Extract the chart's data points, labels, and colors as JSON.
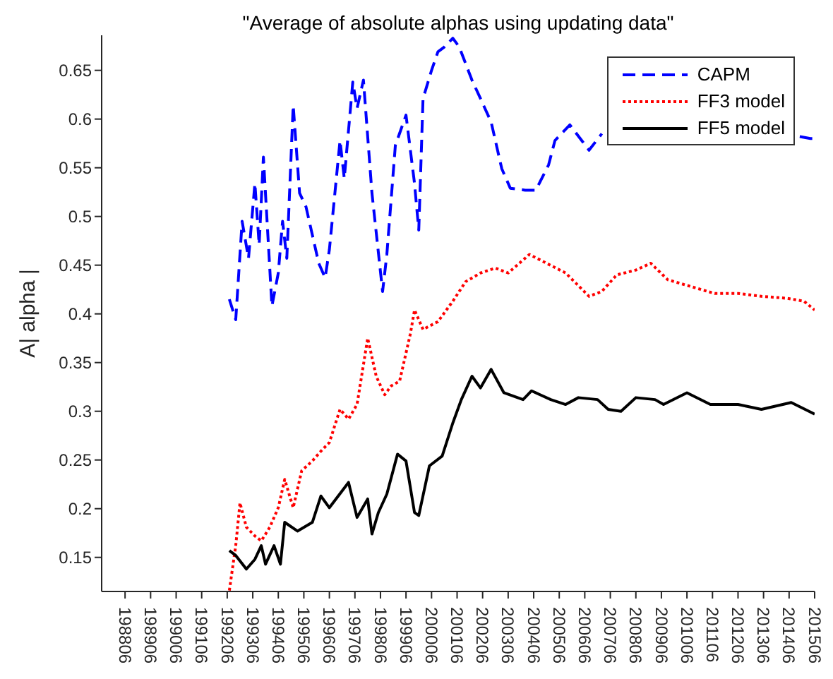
{
  "chart_data": {
    "type": "line",
    "title": "\"Average of absolute alphas using updating data\"",
    "ylabel": "A| alpha |",
    "xlim": [
      "1987-07",
      "2015-06"
    ],
    "xticks": [
      {
        "value": "1988-06",
        "label": "198806"
      },
      {
        "value": "1989-06",
        "label": "198906"
      },
      {
        "value": "1990-06",
        "label": "199006"
      },
      {
        "value": "1991-06",
        "label": "199106"
      },
      {
        "value": "1992-06",
        "label": "199206"
      },
      {
        "value": "1993-06",
        "label": "199306"
      },
      {
        "value": "1994-06",
        "label": "199406"
      },
      {
        "value": "1995-06",
        "label": "199506"
      },
      {
        "value": "1996-06",
        "label": "199606"
      },
      {
        "value": "1997-06",
        "label": "199706"
      },
      {
        "value": "1998-06",
        "label": "199806"
      },
      {
        "value": "1999-06",
        "label": "199906"
      },
      {
        "value": "2000-06",
        "label": "200006"
      },
      {
        "value": "2001-06",
        "label": "200106"
      },
      {
        "value": "2002-06",
        "label": "200206"
      },
      {
        "value": "2003-06",
        "label": "200306"
      },
      {
        "value": "2004-06",
        "label": "200406"
      },
      {
        "value": "2005-06",
        "label": "200506"
      },
      {
        "value": "2006-06",
        "label": "200606"
      },
      {
        "value": "2007-06",
        "label": "200706"
      },
      {
        "value": "2008-06",
        "label": "200806"
      },
      {
        "value": "2009-06",
        "label": "200906"
      },
      {
        "value": "2010-06",
        "label": "201006"
      },
      {
        "value": "2011-06",
        "label": "201106"
      },
      {
        "value": "2012-06",
        "label": "201206"
      },
      {
        "value": "2013-06",
        "label": "201306"
      },
      {
        "value": "2014-06",
        "label": "201406"
      },
      {
        "value": "2015-06",
        "label": "201506"
      }
    ],
    "ylim": [
      0.115,
      0.686
    ],
    "yticks": [
      0.15,
      0.2,
      0.25,
      0.3,
      0.35,
      0.4,
      0.45,
      0.5,
      0.55,
      0.6,
      0.65
    ],
    "grid": false,
    "legend": "top right",
    "marker": "none",
    "series": [
      {
        "name": "CAPM",
        "color": "#0000ff",
        "line_style": "dashed",
        "x": [
          "1992-07",
          "1992-10",
          "1993-01",
          "1993-04",
          "1993-07",
          "1993-09",
          "1993-11",
          "1994-03",
          "1994-06",
          "1994-08",
          "1994-10",
          "1995-01",
          "1995-04",
          "1995-07",
          "1996-01",
          "1996-04",
          "1996-06",
          "1996-11",
          "1997-01",
          "1997-05",
          "1997-07",
          "1997-10",
          "1998-02",
          "1998-07",
          "1998-09",
          "1999-01",
          "1999-06",
          "1999-10",
          "1999-12",
          "2000-02",
          "2000-06",
          "2000-09",
          "2000-12",
          "2001-04",
          "2001-07",
          "2002-01",
          "2002-05",
          "2002-10",
          "2003-03",
          "2003-07",
          "2004-02",
          "2004-07",
          "2005-01",
          "2005-04",
          "2005-11",
          "2006-08",
          "2007-02",
          "2010-01",
          "2014-11",
          "2015-04",
          "2015-06"
        ],
        "values": [
          0.415,
          0.394,
          0.495,
          0.457,
          0.534,
          0.471,
          0.561,
          0.408,
          0.442,
          0.495,
          0.457,
          0.614,
          0.524,
          0.51,
          0.452,
          0.437,
          0.466,
          0.578,
          0.539,
          0.638,
          0.611,
          0.64,
          0.524,
          0.423,
          0.461,
          0.573,
          0.604,
          0.534,
          0.486,
          0.621,
          0.65,
          0.669,
          0.674,
          0.683,
          0.674,
          0.64,
          0.621,
          0.597,
          0.549,
          0.529,
          0.527,
          0.527,
          0.553,
          0.578,
          0.594,
          0.568,
          0.585,
          null,
          0.582,
          0.58,
          0.58
        ]
      },
      {
        "name": "FF3 model",
        "color": "#ff0000",
        "line_style": "dotted",
        "x": [
          "1992-07",
          "1992-10",
          "1992-12",
          "1993-03",
          "1993-07",
          "1993-10",
          "1994-02",
          "1994-06",
          "1994-09",
          "1995-01",
          "1995-05",
          "1995-10",
          "1996-02",
          "1996-06",
          "1996-11",
          "1997-03",
          "1997-07",
          "1997-12",
          "1998-04",
          "1998-08",
          "1998-11",
          "1999-03",
          "1999-08",
          "1999-10",
          "2000-02",
          "2000-09",
          "2001-04",
          "2001-10",
          "2002-05",
          "2002-12",
          "2003-06",
          "2004-04",
          "2004-12",
          "2005-09",
          "2006-08",
          "2007-02",
          "2007-09",
          "2008-06",
          "2009-01",
          "2009-09",
          "2010-08",
          "2011-07",
          "2012-06",
          "2013-05",
          "2014-05",
          "2015-01",
          "2015-06"
        ],
        "values": [
          0.116,
          0.162,
          0.206,
          0.181,
          0.172,
          0.167,
          0.181,
          0.201,
          0.23,
          0.201,
          0.239,
          0.249,
          0.259,
          0.268,
          0.302,
          0.292,
          0.307,
          0.375,
          0.336,
          0.317,
          0.326,
          0.331,
          0.379,
          0.404,
          0.384,
          0.392,
          0.413,
          0.433,
          0.442,
          0.447,
          0.442,
          0.461,
          0.452,
          0.442,
          0.418,
          0.423,
          0.44,
          0.445,
          0.452,
          0.435,
          0.428,
          0.421,
          0.421,
          0.418,
          0.416,
          0.413,
          0.404
        ]
      },
      {
        "name": "FF5 model",
        "color": "#000000",
        "line_style": "solid",
        "x": [
          "1992-07",
          "1992-10",
          "1993-03",
          "1993-07",
          "1993-10",
          "1993-12",
          "1994-04",
          "1994-07",
          "1994-09",
          "1995-03",
          "1995-10",
          "1996-02",
          "1996-06",
          "1997-03",
          "1997-07",
          "1997-12",
          "1998-02",
          "1998-05",
          "1998-09",
          "1999-02",
          "1999-06",
          "1999-10",
          "1999-12",
          "2000-05",
          "2000-11",
          "2001-04",
          "2001-08",
          "2002-01",
          "2002-05",
          "2002-10",
          "2003-04",
          "2004-01",
          "2004-05",
          "2005-02",
          "2005-09",
          "2006-03",
          "2006-12",
          "2007-05",
          "2007-11",
          "2008-06",
          "2009-03",
          "2009-07",
          "2010-06",
          "2011-05",
          "2012-06",
          "2013-05",
          "2014-07",
          "2015-06"
        ],
        "values": [
          0.157,
          0.152,
          0.138,
          0.148,
          0.162,
          0.143,
          0.162,
          0.143,
          0.186,
          0.177,
          0.186,
          0.213,
          0.201,
          0.227,
          0.191,
          0.21,
          0.174,
          0.196,
          0.215,
          0.256,
          0.249,
          0.196,
          0.193,
          0.244,
          0.254,
          0.288,
          0.312,
          0.336,
          0.324,
          0.343,
          0.319,
          0.312,
          0.321,
          0.312,
          0.307,
          0.314,
          0.312,
          0.302,
          0.3,
          0.314,
          0.312,
          0.307,
          0.319,
          0.307,
          0.307,
          0.302,
          0.309,
          0.297
        ]
      }
    ]
  }
}
